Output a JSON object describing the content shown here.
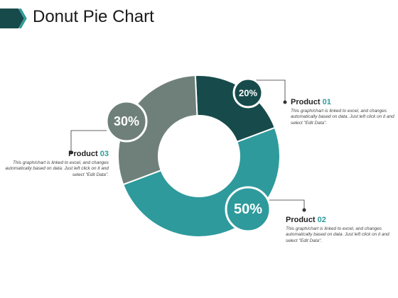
{
  "page": {
    "title": "Donut Pie Chart"
  },
  "chart_data": {
    "type": "pie",
    "style": "donut",
    "title": "Donut Pie Chart",
    "slices": [
      {
        "label": "Product 01",
        "name": "Product",
        "number": "01",
        "value": 20,
        "percent_label": "20%",
        "color": "#174b4b",
        "description": "This graph/chart is linked to excel, and changes automatically based on data. Just left click on it and select \"Edit Data\"."
      },
      {
        "label": "Product 02",
        "name": "Product",
        "number": "02",
        "value": 50,
        "percent_label": "50%",
        "color": "#2e9a9c",
        "description": "This graph/chart is linked to excel, and changes automatically based on data. Just left click on it and select \"Edit Data\"."
      },
      {
        "label": "Product 03",
        "name": "Product",
        "number": "03",
        "value": 30,
        "percent_label": "30%",
        "color": "#6e8079",
        "description": "This graph/chart is linked to excel, and changes automatically based on data. Just left click on it and select \"Edit Data\"."
      }
    ],
    "legend": "callouts"
  }
}
